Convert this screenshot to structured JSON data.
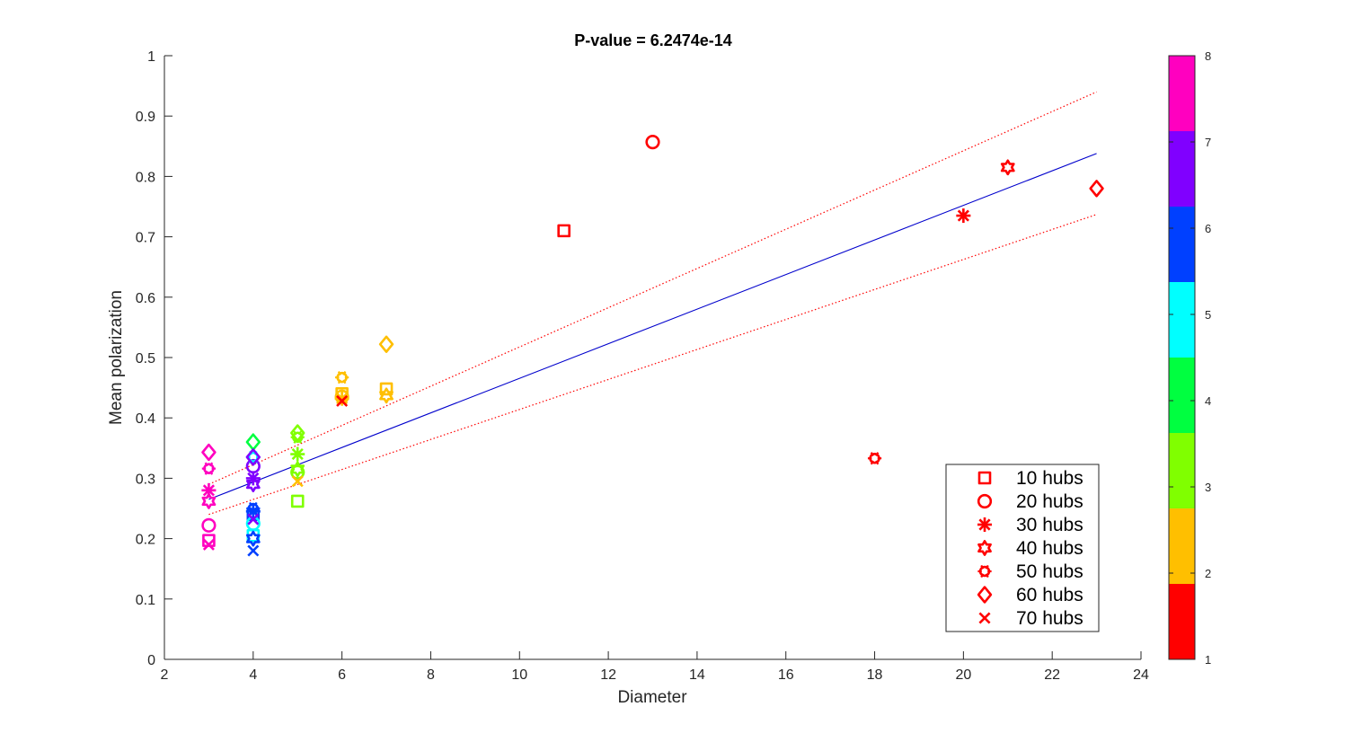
{
  "chart_data": {
    "type": "scatter",
    "title": "P-value = 6.2474e-14",
    "xlabel": "Diameter",
    "ylabel": "Mean polarization",
    "xlim": [
      2,
      24
    ],
    "ylim": [
      0,
      1
    ],
    "xticks": [
      2,
      4,
      6,
      8,
      10,
      12,
      14,
      16,
      18,
      20,
      22,
      24
    ],
    "yticks": [
      0,
      0.1,
      0.2,
      0.3,
      0.4,
      0.5,
      0.6,
      0.7,
      0.8,
      0.9,
      1
    ],
    "grid": false,
    "legend_position": "bottom-right",
    "colormap": {
      "ticks": [
        1,
        2,
        3,
        4,
        5,
        6,
        7,
        8
      ],
      "colors": [
        "#ff0000",
        "#ffbf00",
        "#80ff00",
        "#00ff40",
        "#00ffff",
        "#0040ff",
        "#8000ff",
        "#ff00bf"
      ]
    },
    "fit_line": {
      "x": [
        3,
        23
      ],
      "y": [
        0.265,
        0.838
      ],
      "color": "#0000cc"
    },
    "confidence_upper": {
      "x": [
        3,
        23
      ],
      "y": [
        0.29,
        0.94
      ],
      "color": "#ff0000"
    },
    "confidence_lower": {
      "x": [
        3,
        23
      ],
      "y": [
        0.24,
        0.737
      ],
      "color": "#ff0000"
    },
    "series": [
      {
        "name": "10 hubs",
        "marker": "square",
        "points": [
          {
            "x": 3,
            "y": 0.197,
            "c": 8
          },
          {
            "x": 4,
            "y": 0.205,
            "c": 5
          },
          {
            "x": 4,
            "y": 0.24,
            "c": 6
          },
          {
            "x": 5,
            "y": 0.262,
            "c": 3
          },
          {
            "x": 6,
            "y": 0.44,
            "c": 2
          },
          {
            "x": 7,
            "y": 0.448,
            "c": 2
          },
          {
            "x": 11,
            "y": 0.71,
            "c": 1
          }
        ]
      },
      {
        "name": "20 hubs",
        "marker": "circle",
        "points": [
          {
            "x": 3,
            "y": 0.222,
            "c": 8
          },
          {
            "x": 4,
            "y": 0.225,
            "c": 5
          },
          {
            "x": 4,
            "y": 0.32,
            "c": 7
          },
          {
            "x": 5,
            "y": 0.31,
            "c": 3
          },
          {
            "x": 6,
            "y": 0.435,
            "c": 2
          },
          {
            "x": 13,
            "y": 0.857,
            "c": 1
          }
        ]
      },
      {
        "name": "30 hubs",
        "marker": "asterisk",
        "points": [
          {
            "x": 3,
            "y": 0.28,
            "c": 8
          },
          {
            "x": 4,
            "y": 0.245,
            "c": 6
          },
          {
            "x": 4,
            "y": 0.3,
            "c": 7
          },
          {
            "x": 5,
            "y": 0.34,
            "c": 3
          },
          {
            "x": 6,
            "y": 0.432,
            "c": 2
          },
          {
            "x": 20,
            "y": 0.735,
            "c": 1
          }
        ]
      },
      {
        "name": "40 hubs",
        "marker": "hexagram",
        "points": [
          {
            "x": 3,
            "y": 0.262,
            "c": 8
          },
          {
            "x": 4,
            "y": 0.29,
            "c": 7
          },
          {
            "x": 4,
            "y": 0.2,
            "c": 6
          },
          {
            "x": 5,
            "y": 0.315,
            "c": 3
          },
          {
            "x": 7,
            "y": 0.437,
            "c": 2
          },
          {
            "x": 21,
            "y": 0.815,
            "c": 1
          }
        ]
      },
      {
        "name": "50 hubs",
        "marker": "flower",
        "points": [
          {
            "x": 3,
            "y": 0.316,
            "c": 8
          },
          {
            "x": 4,
            "y": 0.335,
            "c": 5
          },
          {
            "x": 4,
            "y": 0.25,
            "c": 6
          },
          {
            "x": 5,
            "y": 0.368,
            "c": 3
          },
          {
            "x": 6,
            "y": 0.467,
            "c": 2
          },
          {
            "x": 18,
            "y": 0.333,
            "c": 1
          }
        ]
      },
      {
        "name": "60 hubs",
        "marker": "diamond",
        "points": [
          {
            "x": 3,
            "y": 0.343,
            "c": 8
          },
          {
            "x": 4,
            "y": 0.36,
            "c": 4
          },
          {
            "x": 4,
            "y": 0.335,
            "c": 7
          },
          {
            "x": 5,
            "y": 0.375,
            "c": 3
          },
          {
            "x": 7,
            "y": 0.522,
            "c": 2
          },
          {
            "x": 23,
            "y": 0.78,
            "c": 1
          }
        ]
      },
      {
        "name": "70 hubs",
        "marker": "cross",
        "points": [
          {
            "x": 3,
            "y": 0.19,
            "c": 8
          },
          {
            "x": 4,
            "y": 0.18,
            "c": 6
          },
          {
            "x": 4,
            "y": 0.232,
            "c": 7
          },
          {
            "x": 5,
            "y": 0.295,
            "c": 2
          },
          {
            "x": 6,
            "y": 0.428,
            "c": 1
          }
        ]
      }
    ]
  }
}
